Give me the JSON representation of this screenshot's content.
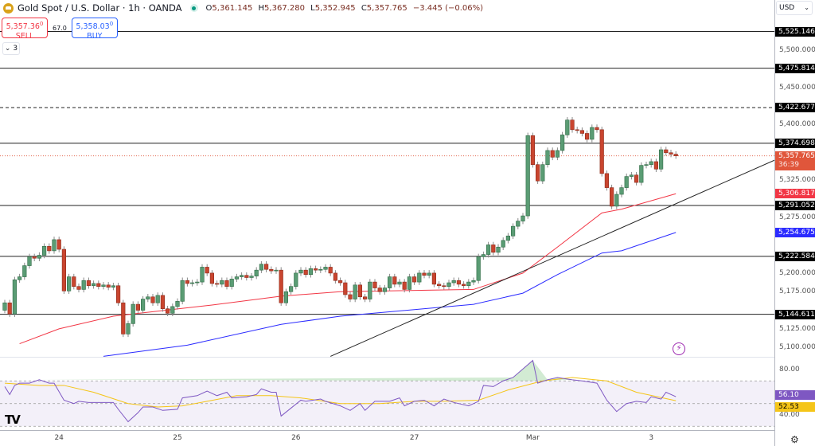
{
  "header": {
    "title": "Gold Spot / U.S. Dollar · 1h · OANDA",
    "open_label": "O",
    "open": "5,361.145",
    "high_label": "H",
    "high": "5,367.280",
    "low_label": "L",
    "low": "5,352.945",
    "close_label": "C",
    "close": "5,357.765",
    "change": "−3.445 (−0.06%)"
  },
  "trade": {
    "sell_price": "5,357.36",
    "sell_sup": "0",
    "sell_label": "SELL",
    "spread": "67.0",
    "buy_price": "5,358.03",
    "buy_sup": "0",
    "buy_label": "BUY"
  },
  "indicators_collapse": {
    "icon": "chevron-down",
    "count": "3"
  },
  "currency": "USD",
  "colors": {
    "up": "#5a9c74",
    "down": "#c9452f",
    "ma_fast": "#f23645",
    "ma_slow": "#2b2bff",
    "rsi": "#7e57c2",
    "rsi_ma": "#f5c518",
    "current": "#e0563b"
  },
  "price_ticks": [
    "5,500.000",
    "5,450.000",
    "5,400.000",
    "5,325.000",
    "5,275.000",
    "5,200.000",
    "5,175.000",
    "5,125.000",
    "5,100.000"
  ],
  "price_tick_values": [
    5500,
    5450,
    5400,
    5325,
    5275,
    5200,
    5175,
    5125,
    5100
  ],
  "levels": [
    {
      "value": 5525.146,
      "label": "5,525.146",
      "style": "solid"
    },
    {
      "value": 5475.814,
      "label": "5,475.814",
      "style": "solid"
    },
    {
      "value": 5422.677,
      "label": "5,422.677",
      "style": "dashed"
    },
    {
      "value": 5374.698,
      "label": "5,374.698",
      "style": "solid"
    },
    {
      "value": 5291.052,
      "label": "5,291.052",
      "style": "solid"
    },
    {
      "value": 5222.584,
      "label": "5,222.584",
      "style": "solid"
    },
    {
      "value": 5144.611,
      "label": "5,144.611",
      "style": "solid"
    }
  ],
  "current_price": {
    "value": 5357.765,
    "label": "5,357.765",
    "countdown": "36:39"
  },
  "ma_fast_label": "5,306.817",
  "ma_slow_label": "5,254.675",
  "time_labels": [
    {
      "label": "24",
      "candle": 11
    },
    {
      "label": "25",
      "candle": 35
    },
    {
      "label": "26",
      "candle": 59
    },
    {
      "label": "27",
      "candle": 83
    },
    {
      "label": "Mar",
      "candle": 107
    },
    {
      "label": "3",
      "candle": 131
    }
  ],
  "rsi": {
    "ticks": [
      "80.00",
      "40.00"
    ],
    "tick_values": [
      80,
      40
    ],
    "bands": [
      70,
      50,
      30
    ],
    "value_label": "56.10",
    "ma_label": "52.53"
  },
  "chart_data": {
    "type": "candlestick",
    "timeframe": "1h",
    "ylim": [
      5090,
      5545
    ],
    "first_open": 5150,
    "closes": [
      5160,
      5145,
      5191,
      5195,
      5210,
      5222,
      5220,
      5224,
      5236,
      5230,
      5245,
      5232,
      5176,
      5195,
      5182,
      5178,
      5190,
      5183,
      5186,
      5182,
      5184,
      5181,
      5183,
      5160,
      5118,
      5132,
      5158,
      5150,
      5165,
      5168,
      5160,
      5170,
      5152,
      5146,
      5155,
      5162,
      5190,
      5186,
      5187,
      5188,
      5208,
      5200,
      5186,
      5185,
      5190,
      5182,
      5192,
      5195,
      5197,
      5194,
      5196,
      5204,
      5212,
      5205,
      5203,
      5204,
      5160,
      5175,
      5182,
      5200,
      5204,
      5198,
      5206,
      5204,
      5205,
      5208,
      5200,
      5190,
      5187,
      5171,
      5165,
      5184,
      5168,
      5165,
      5188,
      5180,
      5175,
      5180,
      5195,
      5185,
      5188,
      5178,
      5195,
      5188,
      5200,
      5197,
      5200,
      5185,
      5183,
      5182,
      5187,
      5190,
      5185,
      5183,
      5188,
      5190,
      5222,
      5225,
      5238,
      5228,
      5235,
      5244,
      5250,
      5263,
      5270,
      5277,
      5385,
      5346,
      5324,
      5346,
      5365,
      5356,
      5365,
      5386,
      5406,
      5393,
      5392,
      5388,
      5380,
      5396,
      5393,
      5334,
      5315,
      5290,
      5306,
      5315,
      5330,
      5332,
      5322,
      5345,
      5346,
      5350,
      5340,
      5366,
      5362,
      5360,
      5357.765
    ],
    "ma_fast": [
      [
        3,
        5105
      ],
      [
        11,
        5125
      ],
      [
        22,
        5142
      ],
      [
        42,
        5157
      ],
      [
        56,
        5169
      ],
      [
        68,
        5175
      ],
      [
        95,
        5178
      ],
      [
        105,
        5200
      ],
      [
        112,
        5235
      ],
      [
        121,
        5281
      ],
      [
        125,
        5286
      ],
      [
        136,
        5306.817
      ]
    ],
    "ma_slow": [
      [
        20,
        5088
      ],
      [
        37,
        5103
      ],
      [
        56,
        5131
      ],
      [
        68,
        5142
      ],
      [
        95,
        5158
      ],
      [
        105,
        5173
      ],
      [
        112,
        5198
      ],
      [
        121,
        5227
      ],
      [
        125,
        5230
      ],
      [
        136,
        5254.675
      ]
    ],
    "trendline": [
      [
        66,
        5088
      ],
      [
        156,
        5352
      ]
    ],
    "rsi": [
      [
        0,
        65
      ],
      [
        1,
        58
      ],
      [
        2,
        66
      ],
      [
        3,
        68
      ],
      [
        5,
        68
      ],
      [
        7,
        71
      ],
      [
        9,
        68
      ],
      [
        10,
        68
      ],
      [
        12,
        53
      ],
      [
        14,
        50
      ],
      [
        15,
        52
      ],
      [
        17,
        51
      ],
      [
        19,
        51
      ],
      [
        22,
        51
      ],
      [
        23,
        45
      ],
      [
        25,
        34
      ],
      [
        27,
        42
      ],
      [
        28,
        47
      ],
      [
        30,
        47
      ],
      [
        32,
        44
      ],
      [
        35,
        45
      ],
      [
        36,
        55
      ],
      [
        39,
        57
      ],
      [
        41,
        61
      ],
      [
        43,
        57
      ],
      [
        45,
        60
      ],
      [
        46,
        55
      ],
      [
        49,
        56
      ],
      [
        51,
        58
      ],
      [
        52,
        63
      ],
      [
        54,
        60
      ],
      [
        55,
        60
      ],
      [
        56,
        39
      ],
      [
        58,
        46
      ],
      [
        60,
        53
      ],
      [
        61,
        52
      ],
      [
        64,
        54
      ],
      [
        65,
        52
      ],
      [
        68,
        48
      ],
      [
        70,
        44
      ],
      [
        72,
        50
      ],
      [
        73,
        44
      ],
      [
        75,
        52
      ],
      [
        78,
        52
      ],
      [
        80,
        55
      ],
      [
        81,
        48
      ],
      [
        83,
        52
      ],
      [
        85,
        53
      ],
      [
        87,
        48
      ],
      [
        89,
        54
      ],
      [
        91,
        51
      ],
      [
        93,
        49
      ],
      [
        94,
        48
      ],
      [
        96,
        52
      ],
      [
        97,
        66
      ],
      [
        99,
        65
      ],
      [
        101,
        70
      ],
      [
        103,
        73
      ],
      [
        107,
        88
      ],
      [
        108,
        68
      ],
      [
        110,
        71
      ],
      [
        112,
        73
      ],
      [
        115,
        71
      ],
      [
        117,
        70
      ],
      [
        120,
        68
      ],
      [
        122,
        53
      ],
      [
        124,
        43
      ],
      [
        126,
        50
      ],
      [
        128,
        52
      ],
      [
        130,
        51
      ],
      [
        131,
        56
      ],
      [
        133,
        54
      ],
      [
        134,
        60
      ],
      [
        136,
        56.1
      ]
    ],
    "rsi_ma": [
      [
        0,
        68
      ],
      [
        7,
        66
      ],
      [
        12,
        66
      ],
      [
        18,
        60
      ],
      [
        25,
        50
      ],
      [
        31,
        47
      ],
      [
        36,
        48
      ],
      [
        41,
        52
      ],
      [
        47,
        57
      ],
      [
        54,
        57
      ],
      [
        60,
        55
      ],
      [
        68,
        50
      ],
      [
        76,
        50
      ],
      [
        83,
        52
      ],
      [
        89,
        52
      ],
      [
        96,
        53
      ],
      [
        102,
        62
      ],
      [
        109,
        70
      ],
      [
        115,
        73
      ],
      [
        122,
        70
      ],
      [
        128,
        60
      ],
      [
        136,
        52.53
      ]
    ]
  }
}
